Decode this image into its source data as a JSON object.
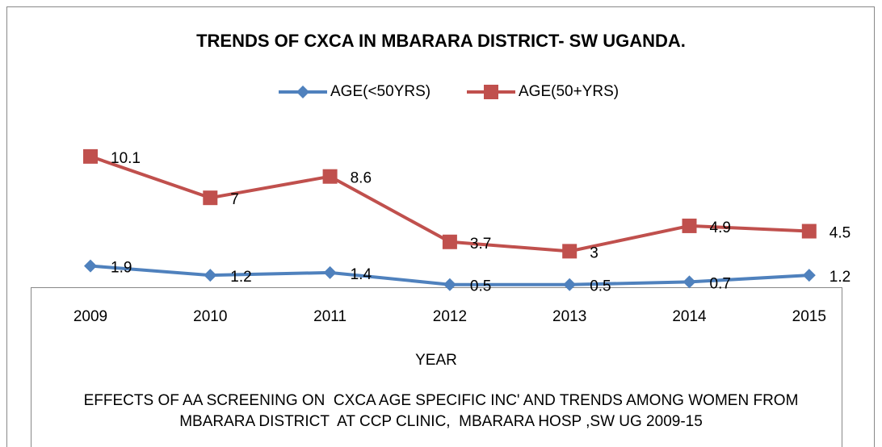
{
  "chart_data": {
    "type": "line",
    "title": "TRENDS OF CXCA IN MBARARA DISTRICT- SW UGANDA.",
    "x_label": "YEAR",
    "caption": [
      "EFFECTS OF AA SCREENING ON  CXCA AGE SPECIFIC INC' AND TRENDS AMONG WOMEN FROM",
      "MBARARA DISTRICT  AT CCP CLINIC,  MBARARA HOSP ,SW UG 2009-15"
    ],
    "categories": [
      "2009",
      "2010",
      "2011",
      "2012",
      "2013",
      "2014",
      "2015"
    ],
    "series": [
      {
        "name": "AGE(<50YRS)",
        "color": "#4f81bd",
        "marker": "diamond",
        "values": [
          1.9,
          1.2,
          1.4,
          0.5,
          0.5,
          0.7,
          1.2
        ]
      },
      {
        "name": "AGE(50+YRS)",
        "color": "#c0504d",
        "marker": "square",
        "values": [
          10.1,
          7,
          8.6,
          3.7,
          3,
          4.9,
          4.5
        ]
      }
    ],
    "ylim": [
      0,
      11
    ]
  }
}
